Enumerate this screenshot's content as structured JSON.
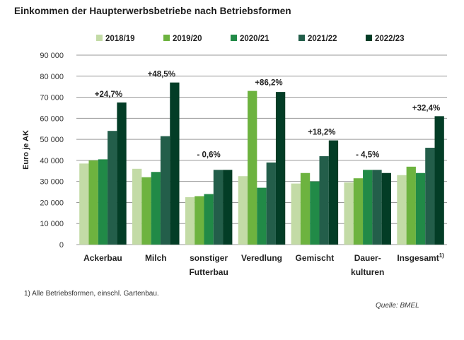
{
  "chart_data": {
    "type": "bar",
    "title": "Einkommen der Haupterwerbsbetriebe nach Betriebsformen",
    "xlabel": "",
    "ylabel": "Euro je AK",
    "ylim": [
      0,
      90000
    ],
    "yticks": [
      0,
      10000,
      20000,
      30000,
      40000,
      50000,
      60000,
      70000,
      80000,
      90000
    ],
    "ytick_labels": [
      "0",
      "10 000",
      "20 000",
      "30 000",
      "40 000",
      "50 000",
      "60 000",
      "70 000",
      "80 000",
      "90 000"
    ],
    "grid": true,
    "legend_position": "top",
    "categories": [
      [
        "Ackerbau"
      ],
      [
        "Milch"
      ],
      [
        "sonstiger",
        "Futterbau"
      ],
      [
        "Veredlung"
      ],
      [
        "Gemischt"
      ],
      [
        "Dauer-",
        "kulturen"
      ],
      [
        "Insgesamt"
      ]
    ],
    "category_superscripts": [
      "",
      "",
      "",
      "",
      "",
      "",
      "1)"
    ],
    "series": [
      {
        "name": "2018/19",
        "color": "#c3dba6",
        "values": [
          38500,
          36000,
          22500,
          32500,
          29000,
          29500,
          33000
        ]
      },
      {
        "name": "2019/20",
        "color": "#6db33f",
        "values": [
          40000,
          32000,
          23000,
          73000,
          34000,
          31500,
          37000
        ]
      },
      {
        "name": "2020/21",
        "color": "#218a47",
        "values": [
          40500,
          34500,
          24000,
          27000,
          30000,
          35500,
          34000
        ]
      },
      {
        "name": "2021/22",
        "color": "#235e4a",
        "values": [
          54000,
          51500,
          35500,
          39000,
          42000,
          35500,
          46000
        ]
      },
      {
        "name": "2022/23",
        "color": "#033d26",
        "values": [
          67500,
          77000,
          35500,
          72500,
          49500,
          34000,
          61000
        ]
      }
    ],
    "annotations": [
      "+24,7%",
      "+48,5%",
      "- 0,6%",
      "+86,2%",
      "+18,2%",
      "- 4,5%",
      "+32,4%"
    ]
  },
  "footnote": "1) Alle Betriebsformen, einschl. Gartenbau.",
  "source": "Quelle: BMEL"
}
